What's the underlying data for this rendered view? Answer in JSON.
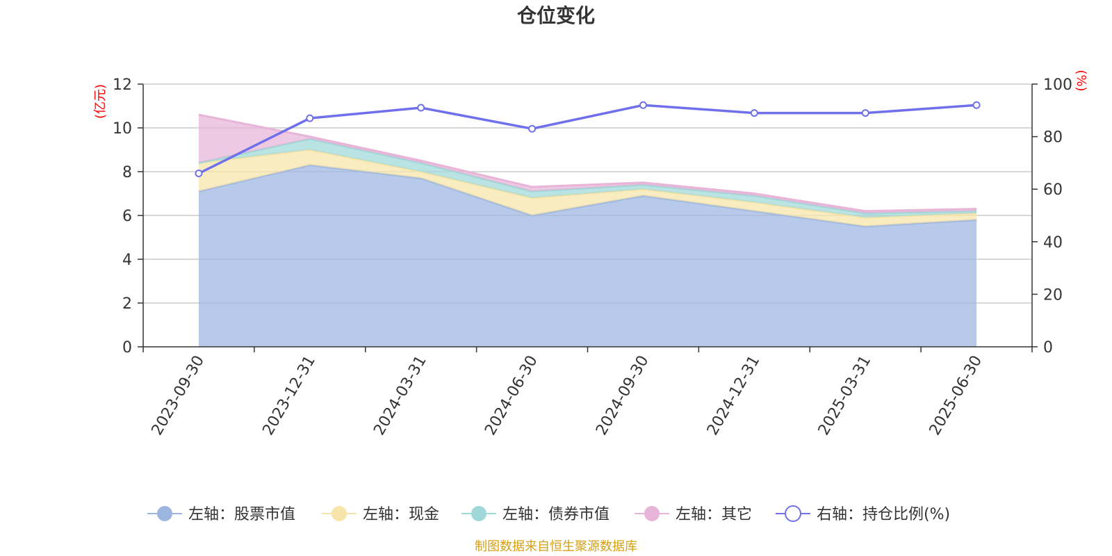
{
  "chart_data": {
    "type": "area",
    "title": "仓位变化",
    "categories": [
      "2023-09-30",
      "2023-12-31",
      "2024-03-31",
      "2024-06-30",
      "2024-09-30",
      "2024-12-31",
      "2025-03-31",
      "2025-06-30"
    ],
    "left_axis": {
      "unit": "(亿元)",
      "ylim": [
        0,
        12
      ],
      "ticks": [
        "0",
        "2",
        "4",
        "6",
        "8",
        "10",
        "12"
      ]
    },
    "right_axis": {
      "unit": "(%)",
      "ylim": [
        0,
        100
      ],
      "ticks": [
        "0",
        "20",
        "40",
        "60",
        "80",
        "100"
      ]
    },
    "stacked": true,
    "grid": true,
    "legend_position": "bottom",
    "series": [
      {
        "name": "左轴：股票市值",
        "axis": "left",
        "kind": "area",
        "color": "#9db6e0",
        "values": [
          7.1,
          8.3,
          7.7,
          6.0,
          6.9,
          6.2,
          5.5,
          5.8
        ]
      },
      {
        "name": "左轴：现金",
        "axis": "left",
        "kind": "area",
        "color": "#f7e4a8",
        "values": [
          1.3,
          0.7,
          0.3,
          0.8,
          0.3,
          0.4,
          0.4,
          0.3
        ]
      },
      {
        "name": "左轴：债券市值",
        "axis": "left",
        "kind": "area",
        "color": "#9fd8d8",
        "values": [
          0.0,
          0.5,
          0.4,
          0.3,
          0.2,
          0.3,
          0.2,
          0.1
        ]
      },
      {
        "name": "左轴：其它",
        "axis": "left",
        "kind": "area",
        "color": "#e8b4d8",
        "values": [
          2.2,
          0.1,
          0.1,
          0.2,
          0.1,
          0.1,
          0.1,
          0.1
        ]
      },
      {
        "name": "右轴：持仓比例(%)",
        "axis": "right",
        "kind": "line",
        "color": "#7070ec",
        "values": [
          66,
          87,
          91,
          83,
          92,
          89,
          89,
          92
        ]
      }
    ],
    "source": "制图数据来自恒生聚源数据库"
  }
}
